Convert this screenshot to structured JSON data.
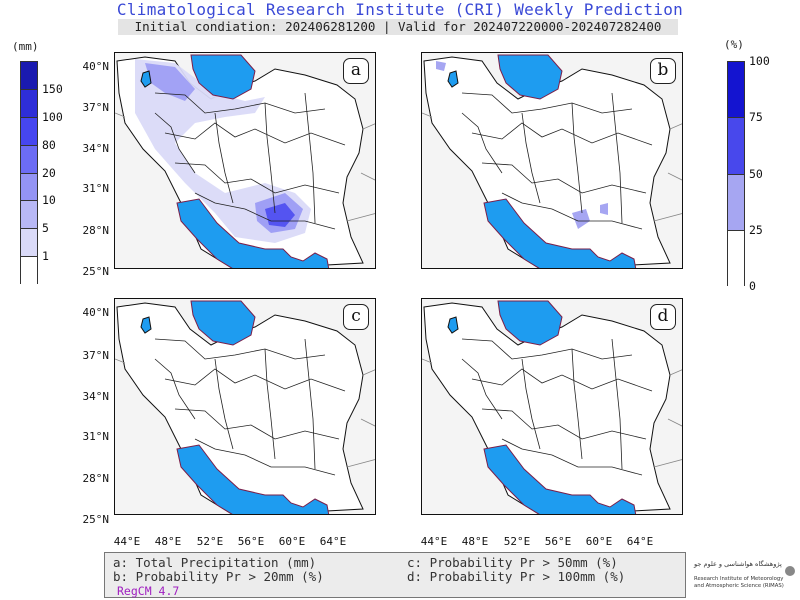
{
  "header": {
    "title": "Climatological Research Institute (CRI) Weekly Prediction",
    "subtitle": "Initial condiation: 202406281200 | Valid for 202407220000-202407282400"
  },
  "colorbar_precip": {
    "unit": "(mm)",
    "labels": [
      "150",
      "100",
      "80",
      "20",
      "10",
      "5",
      "1"
    ],
    "colors": [
      "#1a1ab0",
      "#2e2ed8",
      "#4646f0",
      "#6c6cf4",
      "#9494f4",
      "#b8b8f6",
      "#dadaf8",
      "#ffffff"
    ]
  },
  "colorbar_prob": {
    "unit": "(%)",
    "labels": [
      "100",
      "75",
      "50",
      "25",
      "0"
    ],
    "colors": [
      "#1414d0",
      "#4848ec",
      "#a6a6f2",
      "#ffffff"
    ]
  },
  "panels": [
    {
      "letter": "a"
    },
    {
      "letter": "b"
    },
    {
      "letter": "c"
    },
    {
      "letter": "d"
    }
  ],
  "axes": {
    "lat_labels": [
      "40°N",
      "37°N",
      "34°N",
      "31°N",
      "28°N",
      "25°N"
    ],
    "lon_labels": [
      "44°E",
      "48°E",
      "52°E",
      "56°E",
      "60°E",
      "64°E"
    ]
  },
  "legend": {
    "a": "a: Total Precipitation (mm)",
    "b": "b: Probability Pr > 20mm (%)",
    "c": "c: Probability Pr > 50mm (%)",
    "d": "d: Probability Pr > 100mm (%)",
    "model": "RegCM 4.7"
  },
  "logo": {
    "fa": "پژوهشگاه هواشناسی و علوم جو",
    "en1": "Research Institute of Meteorology",
    "en2": "and Atmospheric Science (RIMAS)"
  },
  "colors": {
    "water": "#1e9cf0",
    "land": "#ffffff",
    "ocean_bg": "#f4f4f4",
    "title": "#3a49d6"
  }
}
